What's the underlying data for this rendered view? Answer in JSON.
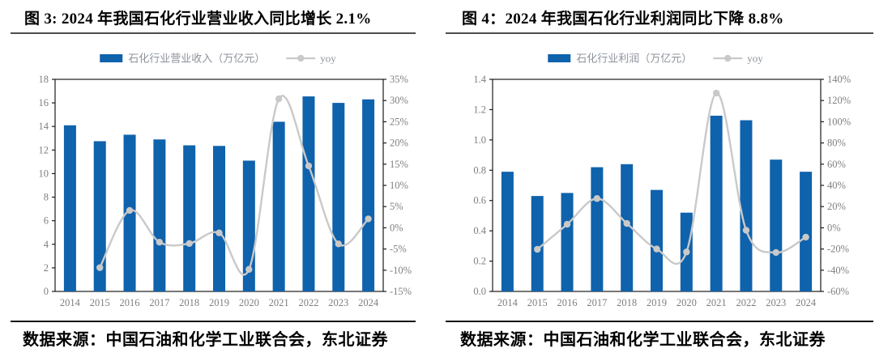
{
  "figures": [
    {
      "source": "数据来源：中国石油和化学工业联合会，东北证券"
    },
    {
      "source": "数据来源：中国石油和化学工业联合会，东北证券"
    }
  ],
  "chart_data": [
    {
      "type": "bar+line",
      "title": "图  3: 2024 年我国石化行业营业收入同比增长 2.1%",
      "categories": [
        "2014",
        "2015",
        "2016",
        "2017",
        "2018",
        "2019",
        "2020",
        "2021",
        "2022",
        "2023",
        "2024"
      ],
      "series": [
        {
          "name": "石化行业营业收入（万亿元）",
          "type": "bar",
          "axis": "left",
          "values": [
            14.1,
            12.75,
            13.3,
            12.9,
            12.4,
            12.35,
            11.1,
            14.4,
            16.55,
            16.0,
            16.3
          ]
        },
        {
          "name": "yoy",
          "type": "line",
          "axis": "right",
          "values": [
            null,
            -9.4,
            4.1,
            -3.4,
            -3.7,
            -1.2,
            -9.8,
            30.4,
            14.6,
            -3.8,
            2.1
          ]
        }
      ],
      "left_axis": {
        "min": 0,
        "max": 18,
        "step": 2,
        "decimals": 0,
        "suffix": ""
      },
      "right_axis": {
        "min": -15,
        "max": 35,
        "step": 5,
        "decimals": 0,
        "suffix": "%"
      },
      "legend_position": "top-center",
      "grid": false
    },
    {
      "type": "bar+line",
      "title": "图  4：2024 年我国石化行业利润同比下降 8.8%",
      "categories": [
        "2014",
        "2015",
        "2016",
        "2017",
        "2018",
        "2019",
        "2020",
        "2021",
        "2022",
        "2023",
        "2024"
      ],
      "series": [
        {
          "name": "石化行业利润（万亿元）",
          "type": "bar",
          "axis": "left",
          "values": [
            0.79,
            0.63,
            0.65,
            0.82,
            0.84,
            0.67,
            0.52,
            1.16,
            1.13,
            0.87,
            0.79
          ]
        },
        {
          "name": "yoy",
          "type": "line",
          "axis": "right",
          "values": [
            null,
            -20.3,
            3.3,
            27.6,
            4.1,
            -20.0,
            -22.8,
            127,
            -2.3,
            -23.3,
            -8.8
          ]
        }
      ],
      "left_axis": {
        "min": 0,
        "max": 1.4,
        "step": 0.2,
        "decimals": 1,
        "suffix": ""
      },
      "right_axis": {
        "min": -60,
        "max": 140,
        "step": 20,
        "decimals": 0,
        "suffix": "%"
      },
      "legend_position": "top-center",
      "grid": false
    }
  ],
  "colors": {
    "bar": "#0F62AC",
    "line": "#C9C9C9",
    "axis_text": "#7F7F7F",
    "legend_text": "#8D939B",
    "plot_border": "#1A1A1A",
    "rule_dark": "#4D4D4D",
    "rule_black": "#141414"
  }
}
